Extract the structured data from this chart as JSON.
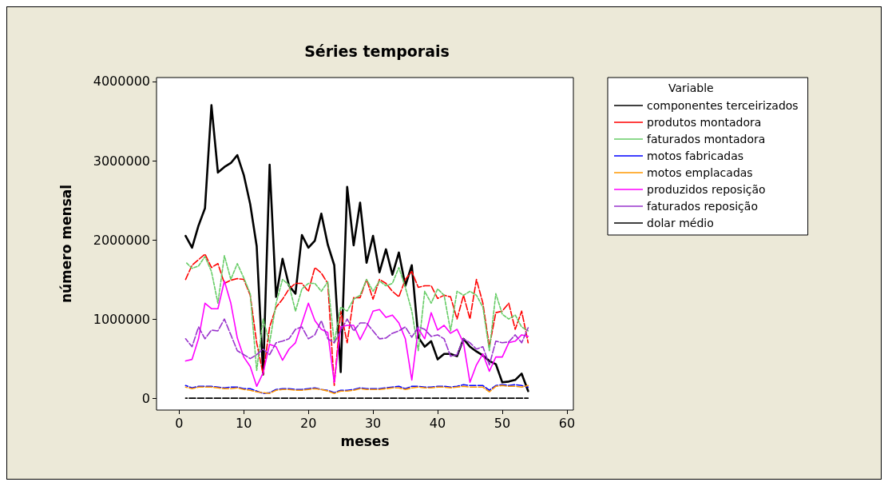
{
  "chart_data": {
    "type": "line",
    "title": "Séries temporais",
    "xlabel": "meses",
    "ylabel": "número mensal",
    "legend_title": "Variable",
    "legend": "right",
    "grid": false,
    "marker": "none",
    "x": [
      1,
      2,
      3,
      4,
      5,
      6,
      7,
      8,
      9,
      10,
      11,
      12,
      13,
      14,
      15,
      16,
      17,
      18,
      19,
      20,
      21,
      22,
      23,
      24,
      25,
      26,
      27,
      28,
      29,
      30,
      31,
      32,
      33,
      34,
      35,
      36,
      37,
      38,
      39,
      40,
      41,
      42,
      43,
      44,
      45,
      46,
      47,
      48,
      49,
      50,
      51,
      52,
      53,
      54
    ],
    "xlim": [
      -3.5,
      61
    ],
    "xticks": [
      0,
      10,
      20,
      30,
      40,
      50,
      60
    ],
    "ylim": [
      -150000,
      4050000
    ],
    "yticks": [
      0,
      1000000,
      2000000,
      3000000,
      4000000
    ],
    "series": [
      {
        "name": "componentes terceirizados",
        "color": "#000000",
        "line_style": "solid",
        "values": [
          2050000,
          1900000,
          2180000,
          2400000,
          3700000,
          2850000,
          2920000,
          2970000,
          3070000,
          2820000,
          2450000,
          1920000,
          300000,
          2950000,
          1280000,
          1760000,
          1420000,
          1320000,
          2060000,
          1900000,
          1990000,
          2330000,
          1940000,
          1680000,
          330000,
          2670000,
          1930000,
          2470000,
          1710000,
          2050000,
          1590000,
          1880000,
          1560000,
          1840000,
          1420000,
          1680000,
          770000,
          650000,
          720000,
          490000,
          560000,
          560000,
          530000,
          750000,
          650000,
          590000,
          540000,
          470000,
          430000,
          200000,
          210000,
          230000,
          310000,
          90000
        ]
      },
      {
        "name": "produtos montadora",
        "color": "#ff0000",
        "line_style": "dashed",
        "values": [
          1500000,
          1680000,
          1750000,
          1820000,
          1650000,
          1700000,
          1450000,
          1490000,
          1510000,
          1500000,
          1300000,
          700000,
          300000,
          900000,
          1150000,
          1250000,
          1380000,
          1450000,
          1450000,
          1350000,
          1650000,
          1580000,
          1450000,
          160000,
          1100000,
          700000,
          1270000,
          1270000,
          1500000,
          1250000,
          1500000,
          1450000,
          1350000,
          1280000,
          1500000,
          1600000,
          1400000,
          1420000,
          1420000,
          1260000,
          1300000,
          1280000,
          1000000,
          1300000,
          1000000,
          1500000,
          1200000,
          650000,
          1080000,
          1100000,
          1200000,
          870000,
          1100000,
          700000
        ]
      },
      {
        "name": "faturados montadora",
        "color": "#66cc66",
        "line_style": "dotted",
        "values": [
          1720000,
          1640000,
          1670000,
          1790000,
          1600000,
          1200000,
          1800000,
          1500000,
          1700000,
          1520000,
          1320000,
          350000,
          1000000,
          700000,
          1200000,
          1500000,
          1430000,
          1100000,
          1380000,
          1450000,
          1450000,
          1350000,
          1470000,
          700000,
          1150000,
          1100000,
          1250000,
          1300000,
          1500000,
          1350000,
          1480000,
          1420000,
          1450000,
          1650000,
          1400000,
          1100000,
          600000,
          1350000,
          1200000,
          1380000,
          1300000,
          850000,
          1350000,
          1300000,
          1350000,
          1300000,
          1150000,
          600000,
          1320000,
          1060000,
          1000000,
          1050000,
          900000,
          850000
        ]
      },
      {
        "name": "motos fabricadas",
        "color": "#0000ff",
        "line_style": "dashed",
        "values": [
          160000,
          130000,
          150000,
          150000,
          150000,
          140000,
          130000,
          140000,
          140000,
          120000,
          120000,
          90000,
          60000,
          70000,
          110000,
          120000,
          120000,
          110000,
          110000,
          120000,
          130000,
          110000,
          100000,
          70000,
          100000,
          100000,
          110000,
          130000,
          120000,
          120000,
          120000,
          130000,
          140000,
          150000,
          120000,
          150000,
          150000,
          140000,
          140000,
          150000,
          150000,
          140000,
          150000,
          170000,
          160000,
          160000,
          160000,
          100000,
          160000,
          170000,
          160000,
          170000,
          160000,
          140000
        ]
      },
      {
        "name": "motos emplacadas",
        "color": "#ff9900",
        "line_style": "dashed",
        "values": [
          140000,
          120000,
          140000,
          140000,
          140000,
          130000,
          120000,
          120000,
          130000,
          110000,
          100000,
          80000,
          70000,
          60000,
          100000,
          110000,
          110000,
          100000,
          100000,
          110000,
          120000,
          110000,
          90000,
          60000,
          90000,
          90000,
          100000,
          120000,
          110000,
          110000,
          110000,
          120000,
          130000,
          130000,
          110000,
          130000,
          140000,
          130000,
          130000,
          140000,
          140000,
          130000,
          140000,
          150000,
          140000,
          140000,
          140000,
          80000,
          150000,
          160000,
          150000,
          150000,
          140000,
          160000
        ]
      },
      {
        "name": "produzidos reposição",
        "color": "#ff00ff",
        "line_style": "solid",
        "values": [
          470000,
          490000,
          750000,
          1200000,
          1130000,
          1130000,
          1480000,
          1200000,
          760000,
          520000,
          400000,
          150000,
          320000,
          680000,
          650000,
          480000,
          620000,
          700000,
          950000,
          1200000,
          980000,
          870000,
          830000,
          200000,
          900000,
          920000,
          920000,
          740000,
          900000,
          1100000,
          1120000,
          1020000,
          1050000,
          950000,
          750000,
          230000,
          880000,
          750000,
          1080000,
          860000,
          920000,
          820000,
          870000,
          700000,
          200000,
          420000,
          560000,
          340000,
          520000,
          520000,
          700000,
          720000,
          800000,
          780000
        ]
      },
      {
        "name": "faturados reposição",
        "color": "#9933cc",
        "line_style": "dashed",
        "values": [
          750000,
          650000,
          900000,
          750000,
          860000,
          850000,
          1000000,
          800000,
          600000,
          550000,
          500000,
          550000,
          620000,
          550000,
          700000,
          720000,
          750000,
          870000,
          900000,
          750000,
          800000,
          980000,
          750000,
          700000,
          850000,
          1000000,
          850000,
          950000,
          950000,
          850000,
          750000,
          760000,
          820000,
          850000,
          900000,
          770000,
          900000,
          870000,
          780000,
          800000,
          750000,
          530000,
          550000,
          750000,
          700000,
          620000,
          650000,
          420000,
          720000,
          700000,
          710000,
          800000,
          700000,
          890000
        ]
      },
      {
        "name": "dolar médio",
        "color": "#000000",
        "line_style": "dashed",
        "values": [
          0,
          0,
          0,
          0,
          0,
          0,
          0,
          0,
          0,
          0,
          0,
          0,
          0,
          0,
          0,
          0,
          0,
          0,
          0,
          0,
          0,
          0,
          0,
          0,
          0,
          0,
          0,
          0,
          0,
          0,
          0,
          0,
          0,
          0,
          0,
          0,
          0,
          0,
          0,
          0,
          0,
          0,
          0,
          0,
          0,
          0,
          0,
          0,
          0,
          0,
          0,
          0,
          0,
          0
        ]
      }
    ]
  }
}
